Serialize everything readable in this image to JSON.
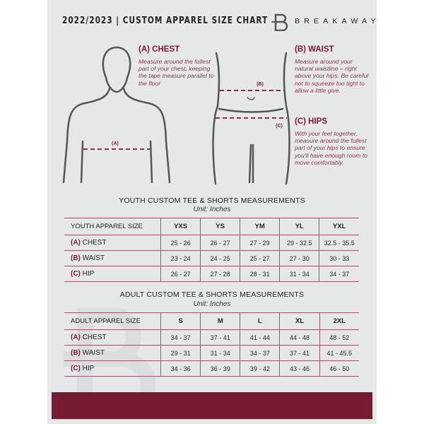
{
  "header": {
    "title": "2022/2023  |  CUSTOM APPAREL SIZE CHART",
    "brand": "BREAKAWAY",
    "logo_letter": "B"
  },
  "sections": {
    "chest": {
      "heading": "(A) CHEST",
      "text": "Measure around the fullest part of your chest, keeping the tape measure parallel to the floor",
      "marker": "(A)"
    },
    "waist": {
      "heading": "(B) WAIST",
      "text": "Measure around your natural waistline – right above your hips. Be careful not to squeeze too tight to allow a little give.",
      "marker": "(B)"
    },
    "hips": {
      "heading": "(C) HIPS",
      "text": "With your feet together, measure around the fullest part of your hips to ensure you'll have enough room to move comfortably.",
      "marker": "(C)"
    }
  },
  "youth": {
    "title": "YOUTH CUSTOM TEE & SHORTS MEASUREMENTS",
    "unit": "Unit: Inches",
    "header": [
      "YOUTH APPAREL SIZE",
      "YXS",
      "YS",
      "YM",
      "YL",
      "YXL"
    ],
    "rows": [
      {
        "letter": "(A)",
        "name": "CHEST",
        "values": [
          "25 - 26",
          "26 - 27",
          "27 - 29",
          "29 - 32.5",
          "32.5 - 35.5"
        ]
      },
      {
        "letter": "(B)",
        "name": "WAIST",
        "values": [
          "23 - 24",
          "24 - 25",
          "25 - 27",
          "27 - 30",
          "30 - 33"
        ]
      },
      {
        "letter": "(C)",
        "name": "HIP",
        "values": [
          "26 - 27",
          "27 - 28",
          "28 - 31",
          "31 - 34",
          "34 - 37"
        ]
      }
    ]
  },
  "adult": {
    "title": "ADULT CUSTOM TEE & SHORTS MEASUREMENTS",
    "unit": "Unit: Inches",
    "header": [
      "ADULT APPAREL SIZE",
      "S",
      "M",
      "L",
      "XL",
      "2XL"
    ],
    "rows": [
      {
        "letter": "(A)",
        "name": "CHEST",
        "values": [
          "34 - 37",
          "37 - 41",
          "41 - 44",
          "44 - 48",
          "48 - 52"
        ]
      },
      {
        "letter": "(B)",
        "name": "WAIST",
        "values": [
          "29 - 31",
          "31 - 34",
          "34 - 37",
          "37 - 41",
          "41 - 45.5"
        ]
      },
      {
        "letter": "(C)",
        "name": "HIP",
        "values": [
          "34 - 36",
          "36 - 39",
          "39 - 42",
          "43 - 46",
          "46 - 50"
        ]
      }
    ]
  },
  "colors": {
    "accent": "#731c32",
    "panel": "#e6e7e9"
  }
}
